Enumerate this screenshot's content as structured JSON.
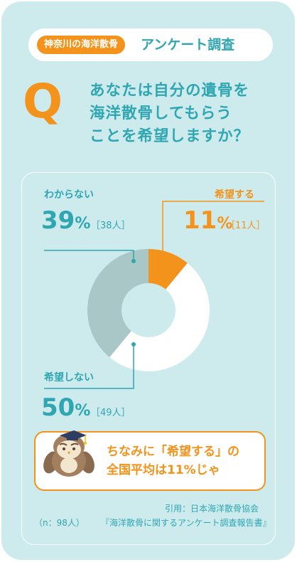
{
  "header": {
    "tag": "神奈川の海洋散骨",
    "title": "アンケート調査"
  },
  "question": {
    "letter": "Q",
    "lines": [
      "あなたは自分の遺骨を",
      "海洋散骨してもらう",
      "ことを希望しますか？"
    ]
  },
  "chart_data": {
    "type": "pie",
    "categories": [
      "希望する",
      "希望しない",
      "わからない"
    ],
    "values": [
      11,
      50,
      39
    ],
    "counts": [
      "11人",
      "49人",
      "38人"
    ],
    "colors": [
      "#f3931b",
      "#ffffff",
      "#a9c7c6"
    ],
    "hole_color": "#cdebed"
  },
  "labels": {
    "wakaranai": {
      "label": "わからない",
      "pct": "39",
      "unit": "%",
      "count": "［38人］"
    },
    "kibou": {
      "label": "希望する",
      "pct": "11",
      "unit": "%",
      "count": "［11人］"
    },
    "kibou_shinai": {
      "label": "希望しない",
      "pct": "50",
      "unit": "%",
      "count": "［49人］"
    }
  },
  "note": {
    "lines": [
      "ちなみに「希望する」の",
      "全国平均は11%じゃ"
    ]
  },
  "footer": {
    "n": "（n：98人）",
    "source_line1": "引用：日本海洋散骨協会",
    "source_line2": "『海洋散骨に関するアンケート調査報告書』"
  },
  "colors": {
    "background": "#cdebed",
    "accent_orange": "#f3931b",
    "accent_teal": "#2fa6b2"
  },
  "icons": {
    "mascot": "owl-mascot-icon"
  }
}
